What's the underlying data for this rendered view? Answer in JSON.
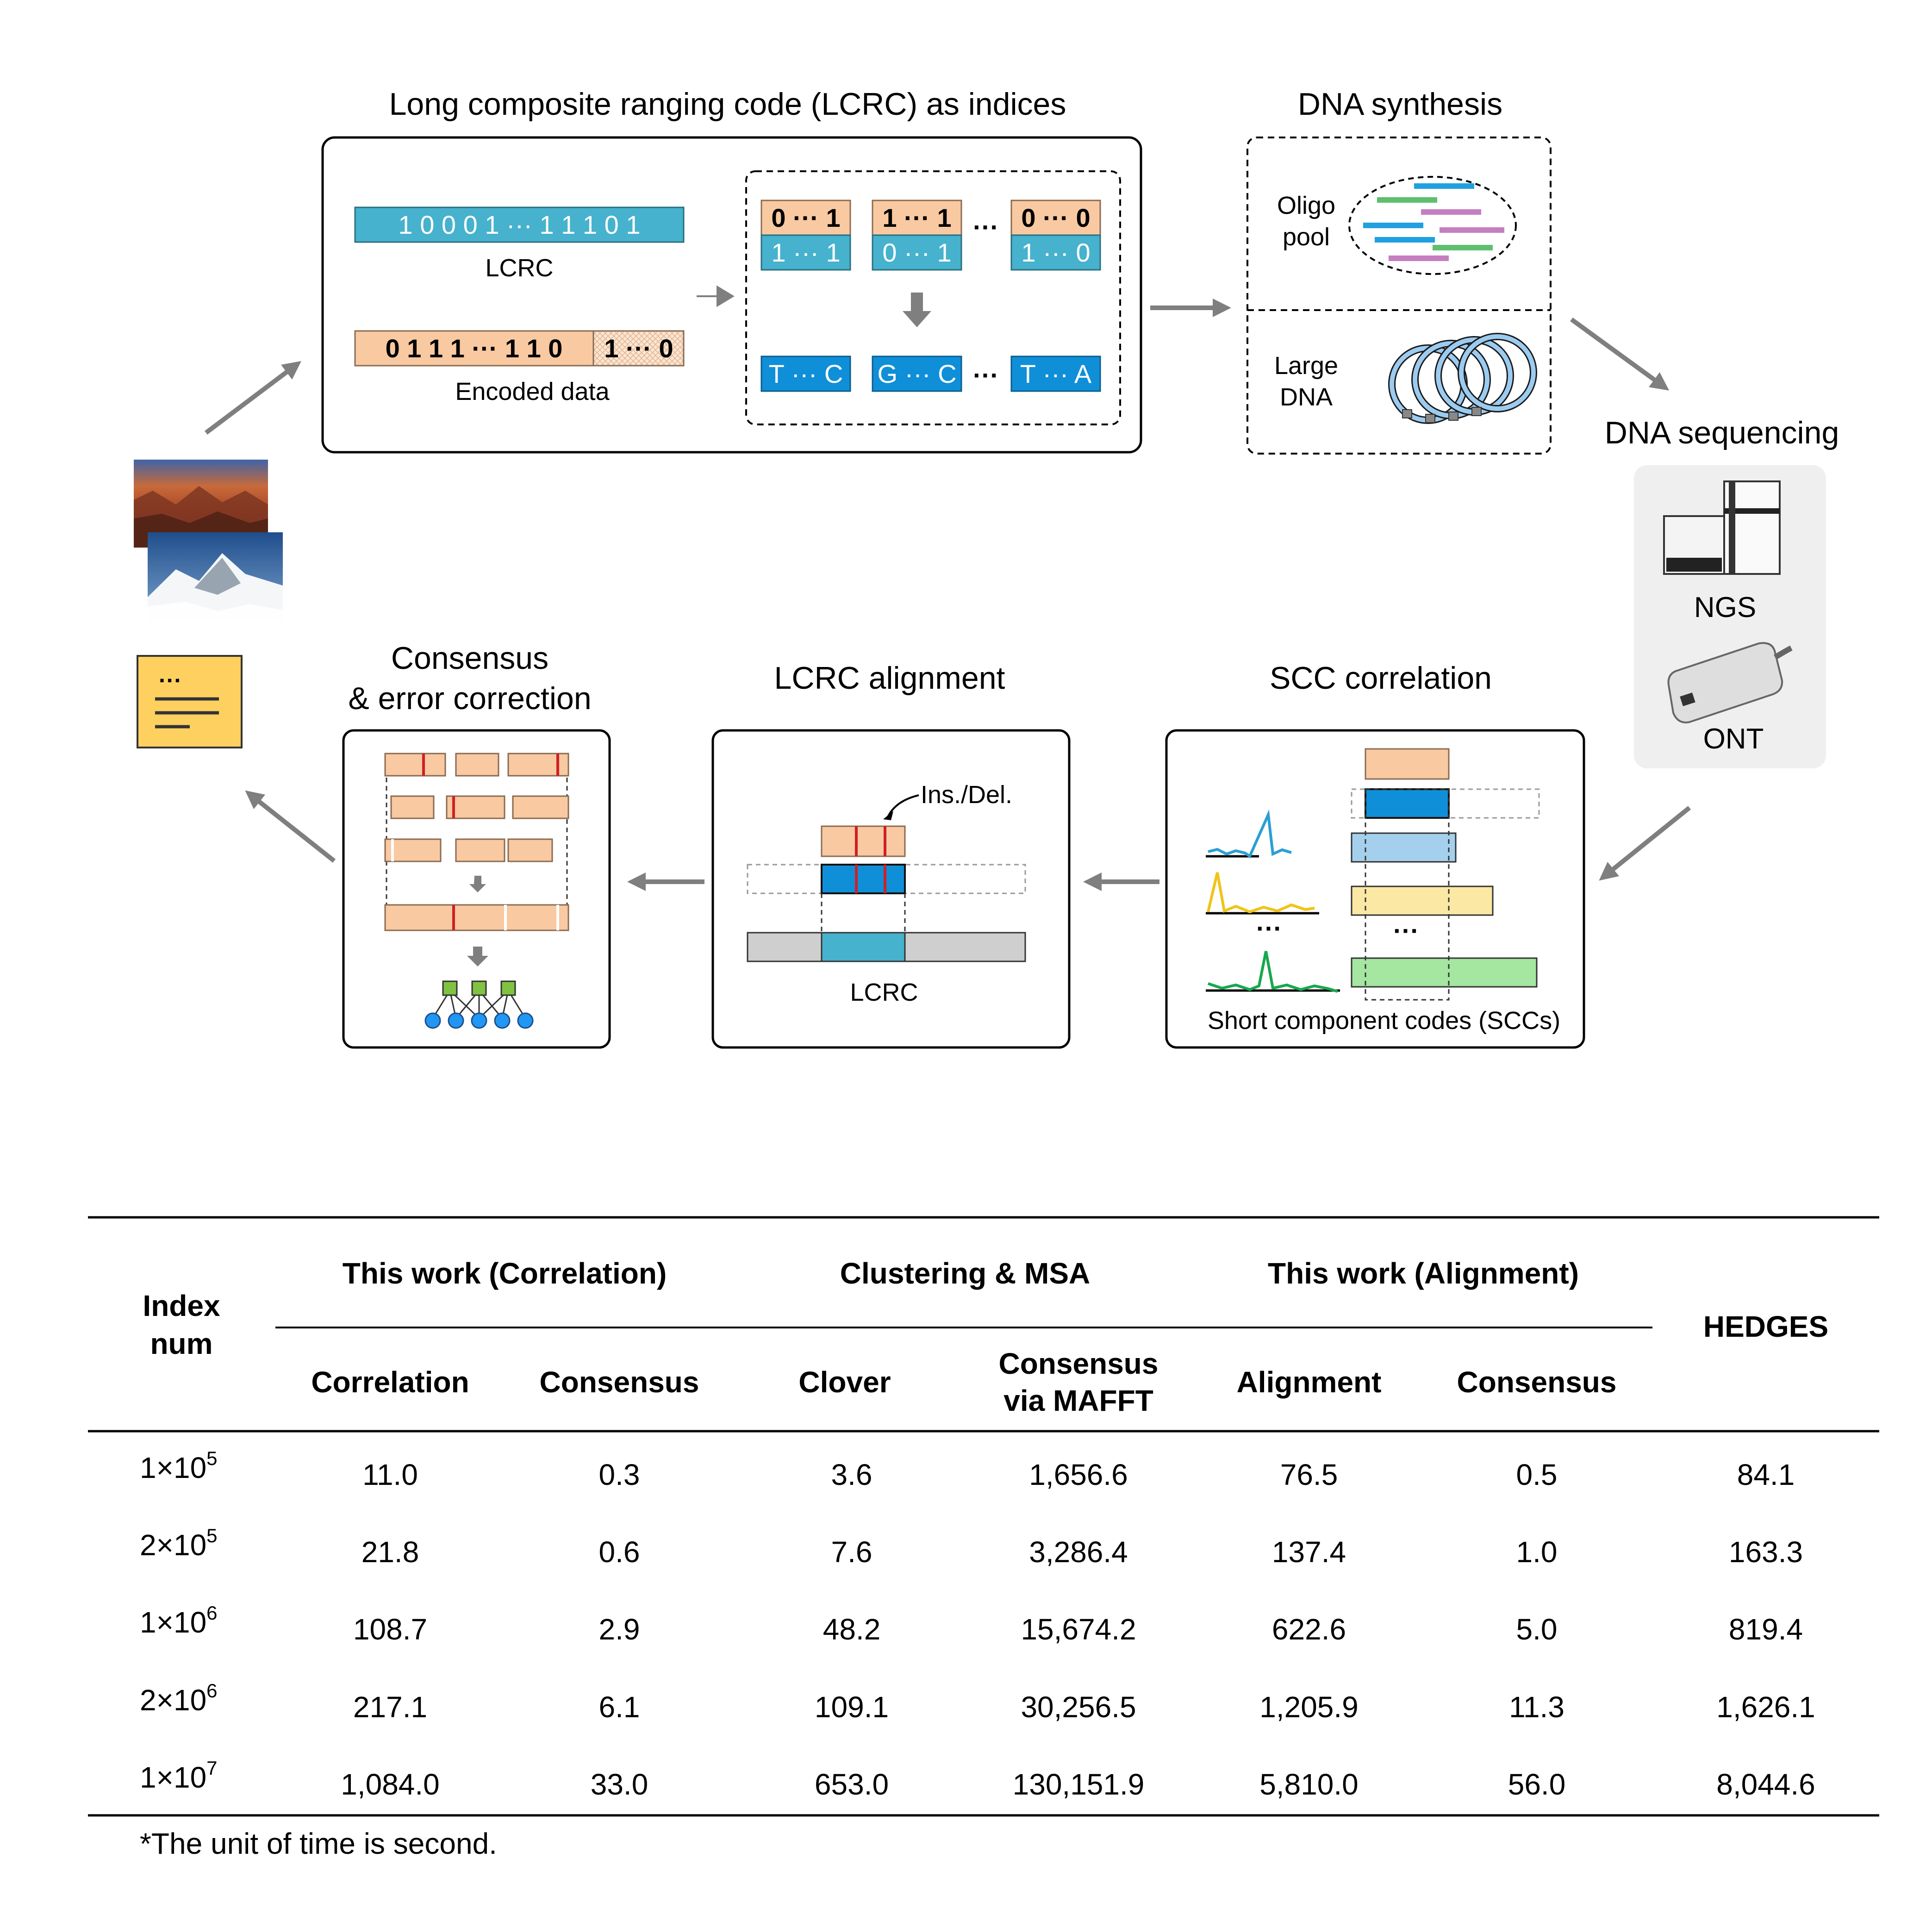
{
  "top": {
    "lcrc_title": "Long composite ranging code (LCRC) as indices",
    "lcrc_bits": "1 0 0 0 1 ··· 1 1 1 0 1",
    "lcrc_label": "LCRC",
    "encoded_bits": "0 1 1 1 ··· 1 1 0",
    "encoded_tail": "1 ··· 0",
    "encoded_label": "Encoded data",
    "dots": "···",
    "pair1_top": "0 ··· 1",
    "pair1_bottom": "1 ··· 1",
    "pair2_top": "1 ··· 1",
    "pair2_bottom": "0 ··· 1",
    "pair3_top": "0 ··· 0",
    "pair3_bottom": "1 ··· 0",
    "seq1": "T ··· C",
    "seq2": "G ··· C",
    "seq3": "T ··· A",
    "synthesis_title": "DNA synthesis",
    "oligo_label_1": "Oligo",
    "oligo_label_2": "pool",
    "large_label_1": "Large",
    "large_label_2": "DNA",
    "sequencing_title": "DNA sequencing",
    "ngs_label": "NGS",
    "ont_label": "ONT"
  },
  "middle": {
    "consensus_title_1": "Consensus",
    "consensus_title_2": "& error correction",
    "alignment_title": "LCRC alignment",
    "insdel_label": "Ins./Del.",
    "alignment_lcrc_label": "LCRC",
    "scc_title": "SCC correlation",
    "scc_label": "Short component codes (SCCs)",
    "dots": "···"
  },
  "colors": {
    "lcrc_blue": "#46b2cd",
    "encoded_orange": "#f9c9a1",
    "seq_blue": "#0f8fd8",
    "arrow_gray": "#7f7f7f",
    "doc_yellow": "#fdd05f",
    "error_red": "#d01f26"
  },
  "table": {
    "group_headers": {
      "index": "Index",
      "index2": "num",
      "correlation_group": "This work (Correlation)",
      "msa_group": "Clustering & MSA",
      "alignment_group": "This work (Alignment)",
      "hedges": "HEDGES"
    },
    "sub_headers": {
      "correlation": "Correlation",
      "consensus1": "Consensus",
      "clover": "Clover",
      "mafft_1": "Consensus",
      "mafft_2": "via MAFFT",
      "alignment": "Alignment",
      "consensus2": "Consensus"
    },
    "rows": [
      {
        "base": "1×10",
        "exp": "5",
        "cells": [
          "11.0",
          "0.3",
          "3.6",
          "1,656.6",
          "76.5",
          "0.5",
          "84.1"
        ]
      },
      {
        "base": "2×10",
        "exp": "5",
        "cells": [
          "21.8",
          "0.6",
          "7.6",
          "3,286.4",
          "137.4",
          "1.0",
          "163.3"
        ]
      },
      {
        "base": "1×10",
        "exp": "6",
        "cells": [
          "108.7",
          "2.9",
          "48.2",
          "15,674.2",
          "622.6",
          "5.0",
          "819.4"
        ]
      },
      {
        "base": "2×10",
        "exp": "6",
        "cells": [
          "217.1",
          "6.1",
          "109.1",
          "30,256.5",
          "1,205.9",
          "11.3",
          "1,626.1"
        ]
      },
      {
        "base": "1×10",
        "exp": "7",
        "cells": [
          "1,084.0",
          "33.0",
          "653.0",
          "130,151.9",
          "5,810.0",
          "56.0",
          "8,044.6"
        ]
      }
    ],
    "footnote": "*The unit of time is second."
  }
}
